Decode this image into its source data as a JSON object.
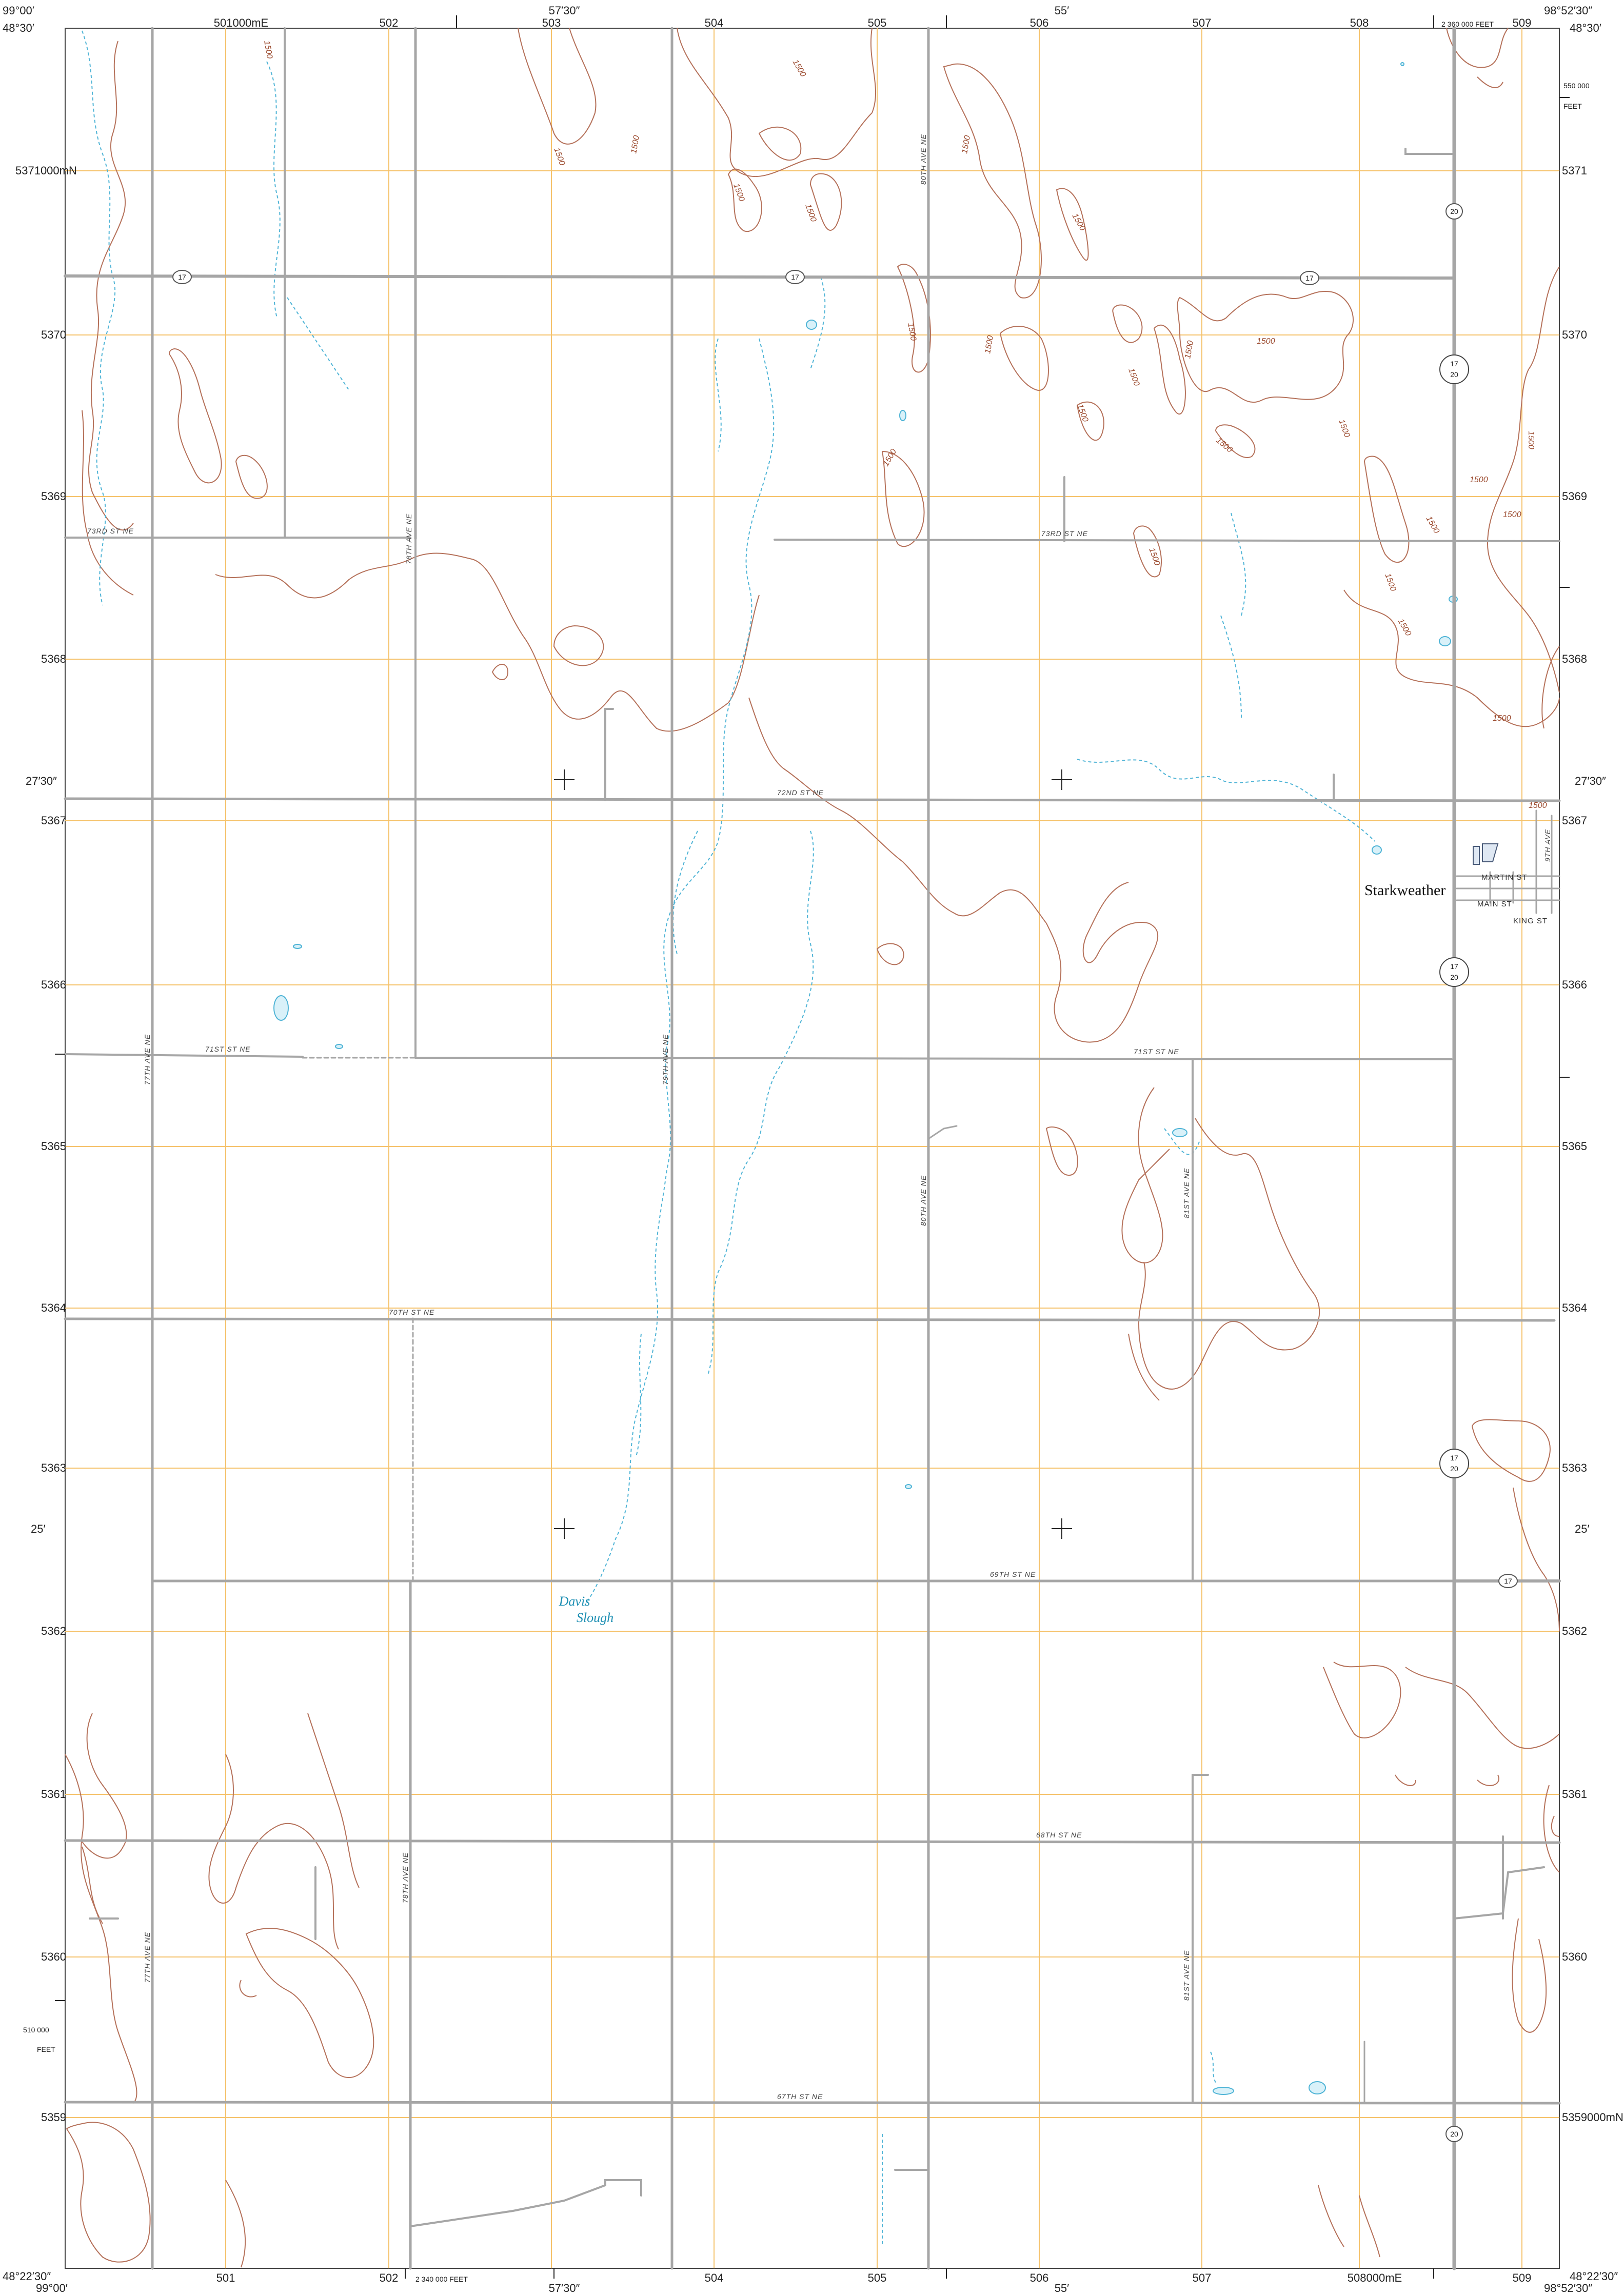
{
  "corners": {
    "top_left_lon": "99°00′",
    "top_left_lat": "48°30′",
    "top_right_lon": "98°52′30″",
    "top_right_lat": "48°30′",
    "bottom_left_lon": "99°00′",
    "bottom_left_lat": "48°22′30″",
    "bottom_right_lon": "98°52′30″",
    "bottom_right_lat": "48°22′30″"
  },
  "graticule": {
    "top_lon_mid": "57′30″",
    "top_lon_55": "55′",
    "bottom_lon_mid": "57′30″",
    "bottom_lon_55": "55′",
    "lat_2730": "27′30″",
    "lat_25": "25′"
  },
  "utm_easting_labels": {
    "top": [
      "501000mE",
      "502",
      "503",
      "504",
      "505",
      "506",
      "507",
      "508",
      "509"
    ],
    "bottom": [
      "501",
      "502",
      "503",
      "504",
      "505",
      "506",
      "507",
      "508000mE",
      "509"
    ]
  },
  "utm_northing_labels": {
    "left": [
      "5371000mN",
      "5370",
      "5369",
      "5368",
      "5367",
      "5366",
      "5365",
      "5364",
      "5363",
      "5362",
      "5361",
      "5360",
      "5359"
    ],
    "right": [
      "5371",
      "5370",
      "5369",
      "5368",
      "5367",
      "5366",
      "5365",
      "5364",
      "5363",
      "5362",
      "5361",
      "5360",
      "5359000mN"
    ]
  },
  "state_plane": {
    "top_feet": "2 360 000 FEET",
    "right_northing": "550 000",
    "right_unit": "FEET",
    "left_northing": "510 000",
    "left_unit": "FEET",
    "bottom_feet": "2 340 000 FEET"
  },
  "roads": {
    "st_73rd_w": "73RD ST NE",
    "st_73rd_e": "73RD ST NE",
    "st_72nd": "72ND ST NE",
    "st_71st_w": "71ST ST NE",
    "st_71st_e": "71ST ST NE",
    "st_70th": "70TH ST NE",
    "st_69th": "69TH ST NE",
    "st_68th": "68TH ST NE",
    "st_67th": "67TH ST NE",
    "ave_77th_n": "77TH AVE NE",
    "ave_77th_s": "77TH AVE NE",
    "ave_78th_n": "78TH AVE NE",
    "ave_78th_s": "78TH AVE NE",
    "ave_79th": "79TH AVE NE",
    "ave_80th_n": "80TH AVE NE",
    "ave_80th_s": "80TH AVE NE",
    "ave_81st_n": "81ST AVE NE",
    "ave_81st_s": "81ST AVE NE",
    "ave_9th": "9TH AVE"
  },
  "town": {
    "name": "Starkweather",
    "streets": [
      "MARTIN ST",
      "MAIN ST",
      "KING ST"
    ]
  },
  "water_feature": [
    "Davis",
    "Slough"
  ],
  "contour_value": "1500",
  "route_shields": {
    "state_17": "17",
    "state_20": "20"
  },
  "colors": {
    "contour": "#b5715a",
    "grid": "#f5c26b",
    "road": "#a6a6a6",
    "water": "#4fb4d6",
    "text": "#222222"
  }
}
